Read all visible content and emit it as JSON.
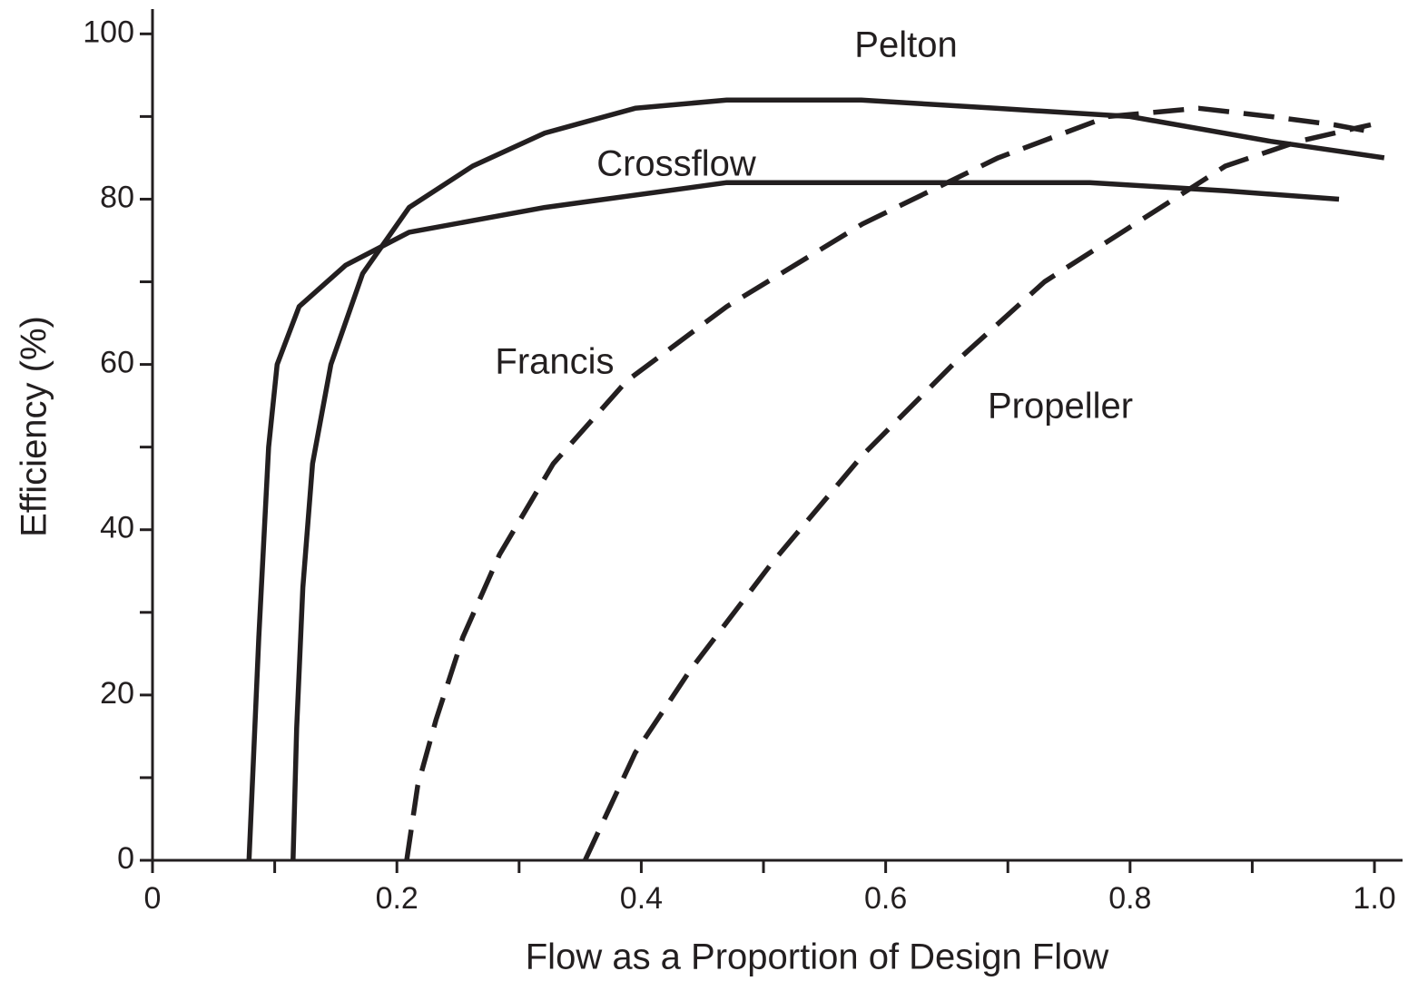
{
  "chart_data": {
    "type": "line",
    "x_label": "Flow as a Proportion of Design Flow",
    "y_label": "Efficiency (%)",
    "xlim": [
      0,
      1.023
    ],
    "ylim": [
      0,
      103
    ],
    "xticks": [
      0,
      0.2,
      0.4,
      0.6,
      0.8,
      {
        "value": 1,
        "label": "1.0"
      }
    ],
    "xminorticks": [
      0.1,
      0.3,
      0.5,
      0.7,
      0.9
    ],
    "yticks": [
      0,
      20,
      40,
      60,
      80,
      100
    ],
    "yminorticks": [
      10,
      30,
      50,
      70,
      90
    ],
    "series": [
      {
        "name": "Pelton",
        "color": "#231f20",
        "dash": "solid",
        "x": [
          0.115,
          0.118,
          0.123,
          0.131,
          0.146,
          0.172,
          0.21,
          0.262,
          0.321,
          0.395,
          0.47,
          0.58,
          0.69,
          0.8,
          0.915,
          1.008
        ],
        "values": [
          0,
          16,
          33,
          48,
          60,
          71,
          79,
          84,
          88,
          91,
          92,
          92,
          91,
          90,
          87,
          85
        ]
      },
      {
        "name": "Crossflow",
        "color": "#231f20",
        "dash": "solid",
        "x": [
          0.079,
          0.087,
          0.095,
          0.102,
          0.12,
          0.158,
          0.21,
          0.321,
          0.47,
          0.618,
          0.767,
          0.878,
          0.971
        ],
        "values": [
          0,
          27,
          50,
          60,
          67,
          72,
          76,
          79,
          82,
          82,
          82,
          81,
          80
        ]
      },
      {
        "name": "Francis",
        "color": "#231f20",
        "dash": "dashed",
        "x": [
          0.208,
          0.217,
          0.232,
          0.254,
          0.284,
          0.328,
          0.388,
          0.47,
          0.581,
          0.692,
          0.782,
          0.856,
          0.915,
          0.967,
          1.003
        ],
        "values": [
          0,
          9,
          17,
          27,
          37,
          48,
          58,
          67,
          77,
          85,
          90,
          91,
          90,
          89,
          88
        ]
      },
      {
        "name": "Propeller",
        "color": "#231f20",
        "dash": "dashed",
        "x": [
          0.354,
          0.395,
          0.44,
          0.507,
          0.581,
          0.655,
          0.73,
          0.804,
          0.878,
          0.938,
          0.997
        ],
        "values": [
          0,
          13,
          23,
          36,
          49,
          60,
          70,
          77,
          84,
          87,
          89
        ]
      }
    ]
  }
}
